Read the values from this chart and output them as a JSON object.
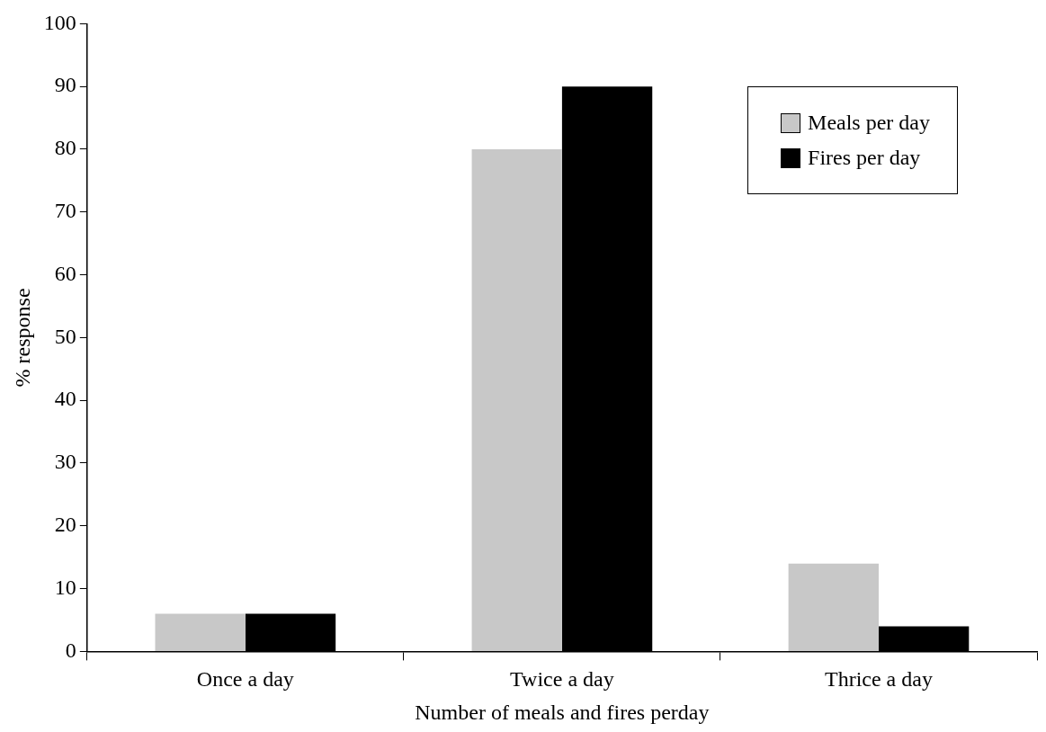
{
  "chart_data": {
    "type": "bar",
    "xlabel": "Number of meals and fires perday",
    "ylabel": "% response",
    "categories": [
      "Once a day",
      "Twice a day",
      "Thrice a day"
    ],
    "series": [
      {
        "name": "Meals per day",
        "color": "#c8c8c8",
        "values": [
          6,
          80,
          14
        ]
      },
      {
        "name": "Fires per day",
        "color": "#000000",
        "values": [
          6,
          90,
          4
        ]
      }
    ],
    "ylim": [
      0,
      100
    ],
    "yticks": [
      0,
      10,
      20,
      30,
      40,
      50,
      60,
      70,
      80,
      90,
      100
    ],
    "grid": false,
    "legend": "top right"
  }
}
